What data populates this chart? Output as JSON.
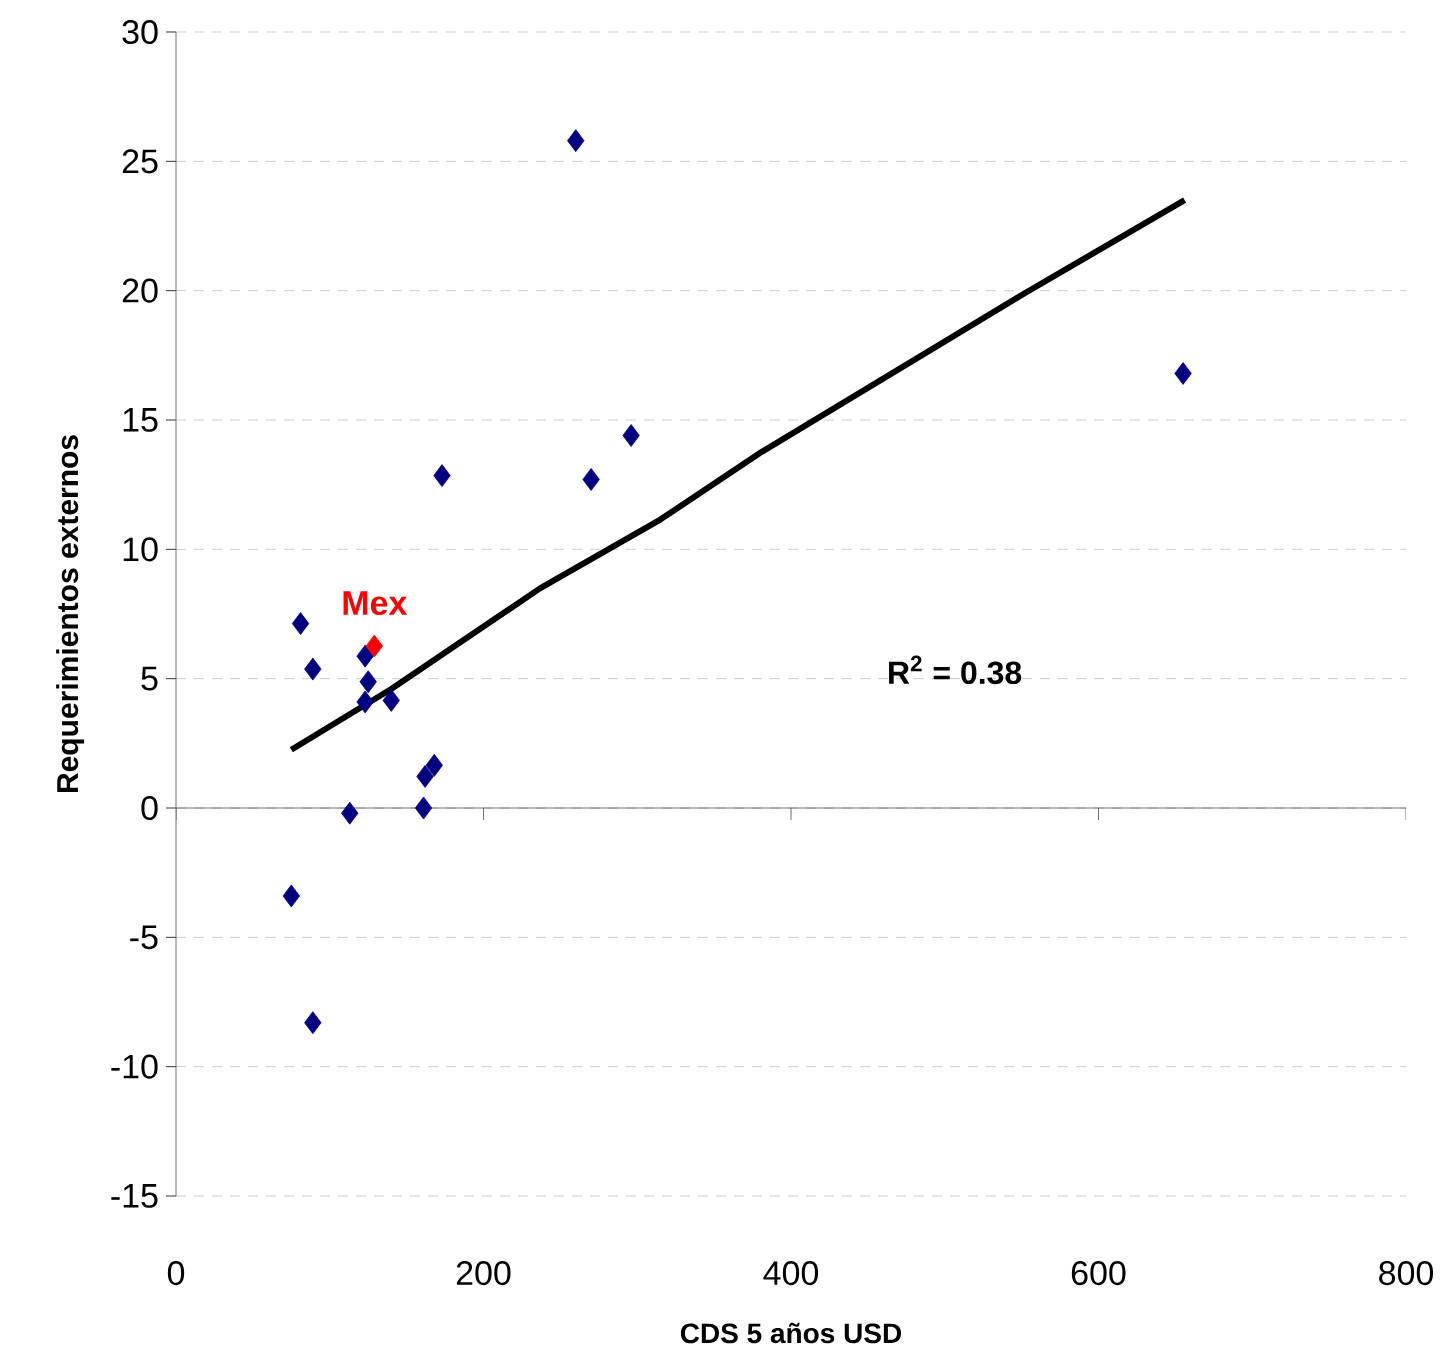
{
  "chart_data": {
    "type": "scatter",
    "xlabel": "CDS 5 años USD",
    "ylabel": "Requerimientos externos",
    "xlim": [
      0,
      800
    ],
    "ylim": [
      -15,
      30
    ],
    "xticks": [
      0,
      200,
      400,
      600,
      800
    ],
    "yticks": [
      -15,
      -10,
      -5,
      0,
      5,
      10,
      15,
      20,
      25,
      30
    ],
    "grid": "y",
    "legend": false,
    "marker": "diamond",
    "series": [
      {
        "color": "#000080",
        "x": [
          260,
          173,
          270,
          296,
          81,
          89,
          123,
          125,
          123,
          140,
          168,
          162,
          113,
          161,
          75,
          89,
          655
        ],
        "values": [
          25.8,
          12.85,
          12.7,
          14.4,
          7.13,
          5.37,
          5.87,
          4.88,
          4.1,
          4.16,
          1.65,
          1.22,
          -0.2,
          0.0,
          -3.4,
          -8.3,
          16.8
        ]
      },
      {
        "name": "Mex",
        "color": "#ff0000",
        "x": [
          129
        ],
        "values": [
          6.26
        ]
      },
      {
        "type": "line",
        "color": "#000000",
        "marker": "none",
        "x": [
          75,
          140,
          237,
          315,
          381,
          552,
          656
        ],
        "values": [
          2.25,
          4.6,
          8.5,
          11.15,
          13.77,
          19.9,
          23.5
        ]
      }
    ],
    "annotations": [
      "R$^{2}$ = 0.38"
    ]
  }
}
